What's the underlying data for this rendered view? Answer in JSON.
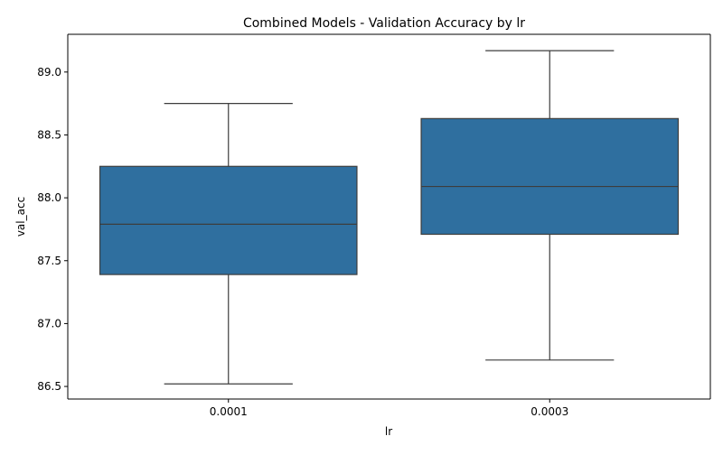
{
  "chart_data": {
    "type": "box",
    "title": "Combined Models - Validation Accuracy by lr",
    "xlabel": "lr",
    "ylabel": "val_acc",
    "ylim": [
      86.4,
      89.3
    ],
    "yticks": [
      "86.5",
      "87.0",
      "87.5",
      "88.0",
      "88.5",
      "89.0"
    ],
    "categories": [
      "0.0001",
      "0.0003"
    ],
    "boxes": [
      {
        "category": "0.0001",
        "min": 86.52,
        "q1": 87.39,
        "median": 87.79,
        "q3": 88.25,
        "max": 88.75
      },
      {
        "category": "0.0003",
        "min": 86.71,
        "q1": 87.71,
        "median": 88.09,
        "q3": 88.63,
        "max": 89.17
      }
    ],
    "box_color": "#2f6f9f",
    "line_color": "#3d3d3d",
    "grid": false,
    "legend": "none"
  }
}
